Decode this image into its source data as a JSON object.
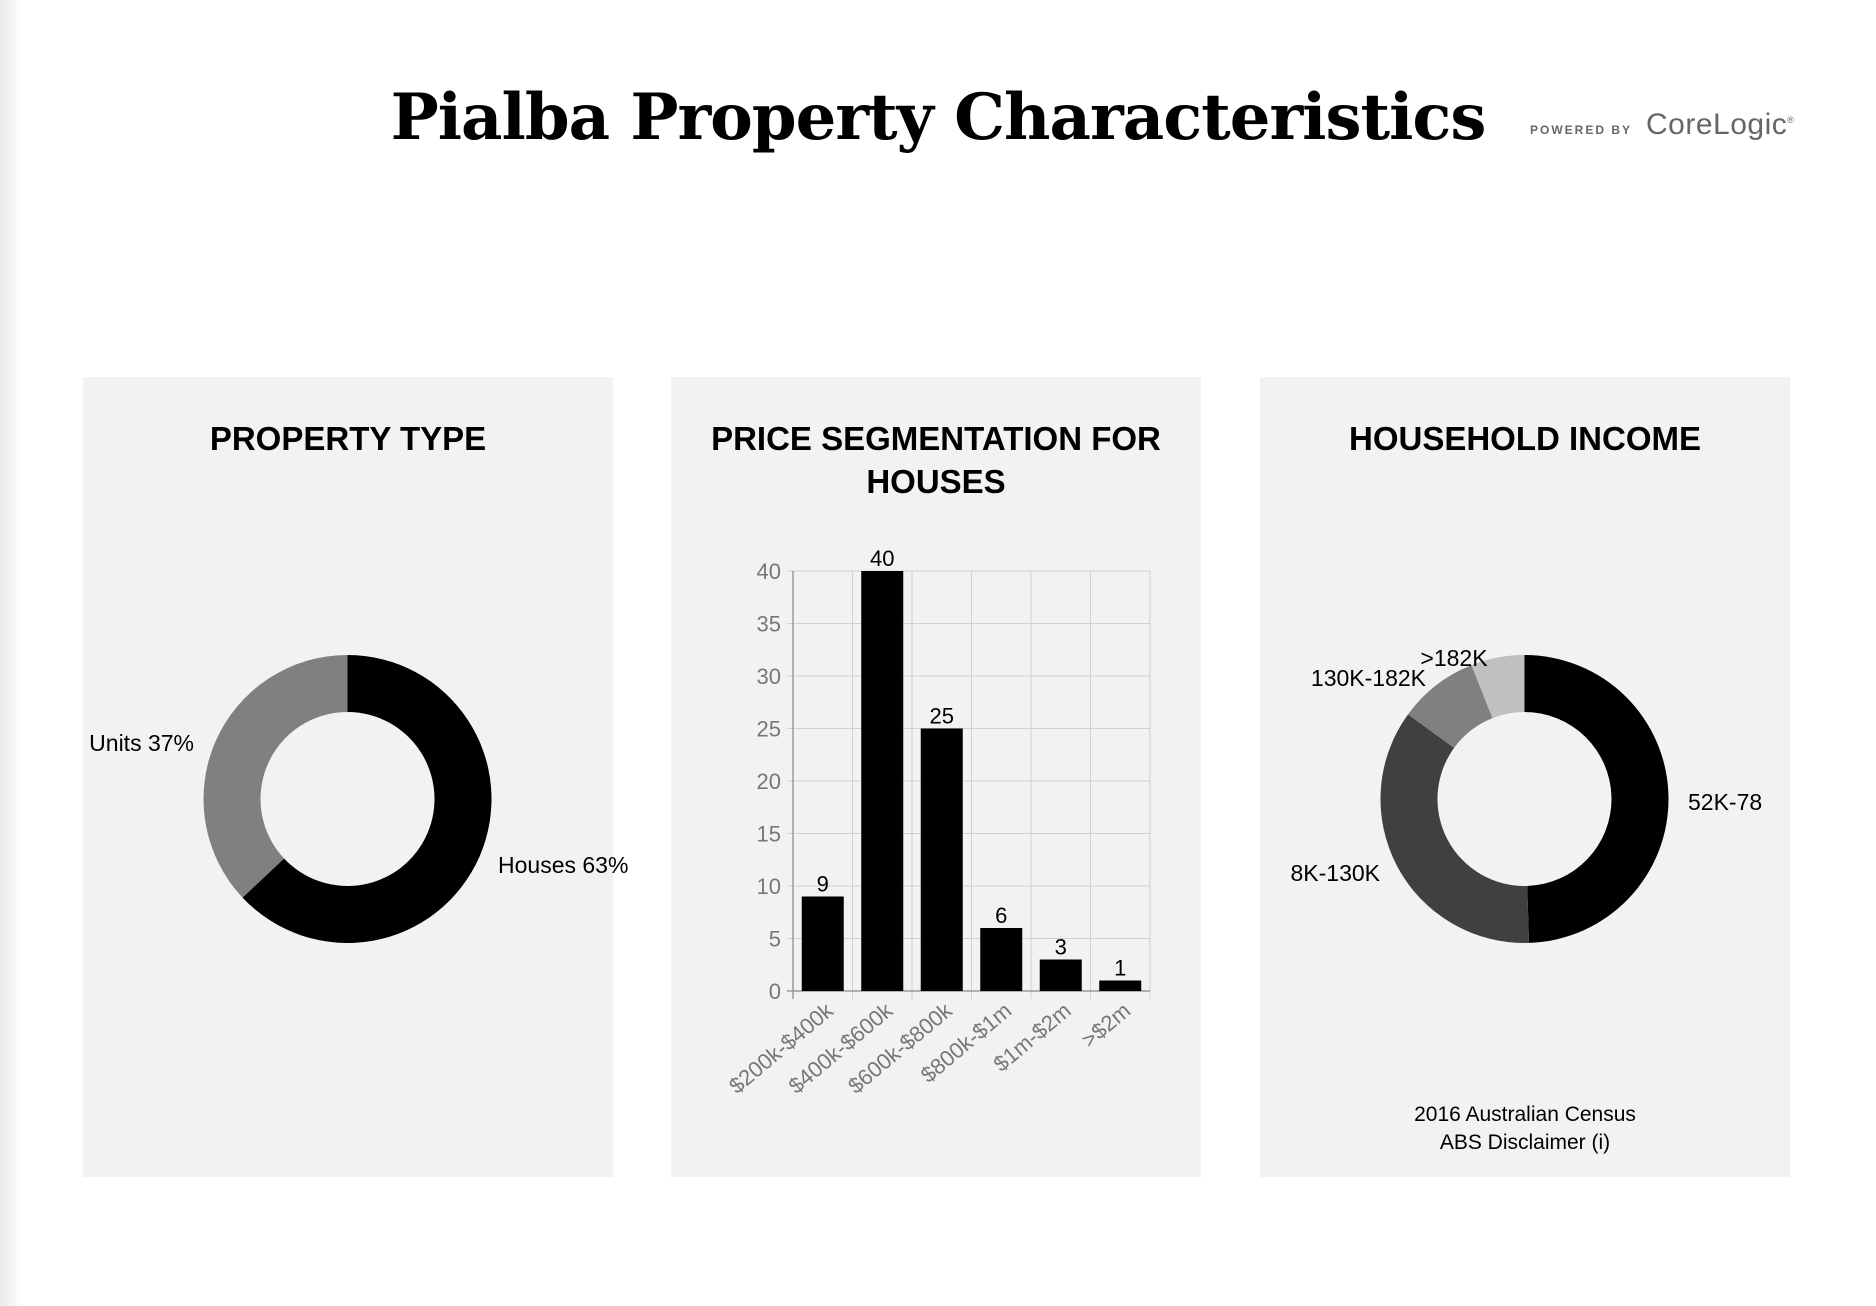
{
  "page": {
    "title": "Pialba Property Characteristics",
    "powered_by": "POWERED BY",
    "brand": "CoreLogic",
    "brand_mark": "®"
  },
  "colors": {
    "card_bg": "#f2f2f2",
    "black": "#000000",
    "dark_grey": "#404040",
    "mid_grey": "#808080",
    "light_grey": "#c0c0c0",
    "grid": "#d0d0d0",
    "axis_text": "#777777"
  },
  "cards": {
    "property_type": {
      "title": "PROPERTY TYPE"
    },
    "price_segmentation": {
      "title_line1": "PRICE SEGMENTATION FOR",
      "title_line2": "HOUSES"
    },
    "household_income": {
      "title": "HOUSEHOLD INCOME",
      "footnote_line1": "2016 Australian Census",
      "footnote_line2": "ABS Disclaimer (i)"
    }
  },
  "chart_data": [
    {
      "type": "pie",
      "title": "PROPERTY TYPE",
      "donut": true,
      "slices": [
        {
          "label": "Houses 63%",
          "value": 63,
          "color": "#000000"
        },
        {
          "label": "Units 37%",
          "value": 37,
          "color": "#808080"
        }
      ]
    },
    {
      "type": "bar",
      "title": "PRICE SEGMENTATION FOR HOUSES",
      "categories": [
        "$200k-$400k",
        "$400k-$600k",
        "$600k-$800k",
        "$800k-$1m",
        "$1m-$2m",
        ">$2m"
      ],
      "values": [
        9,
        40,
        25,
        6,
        3,
        1
      ],
      "ylim": [
        0,
        40
      ],
      "yticks": [
        0,
        5,
        10,
        15,
        20,
        25,
        30,
        35,
        40
      ],
      "grid": true,
      "bar_color": "#000000"
    },
    {
      "type": "pie",
      "title": "HOUSEHOLD INCOME",
      "donut": true,
      "slices": [
        {
          "label": "52K-78",
          "value": 49.5,
          "color": "#000000"
        },
        {
          "label": "8K-130K",
          "value": 35.5,
          "color": "#404040"
        },
        {
          "label": "130K-182K",
          "value": 9,
          "color": "#808080"
        },
        {
          "label": ">182K",
          "value": 6,
          "color": "#c0c0c0"
        }
      ]
    }
  ]
}
